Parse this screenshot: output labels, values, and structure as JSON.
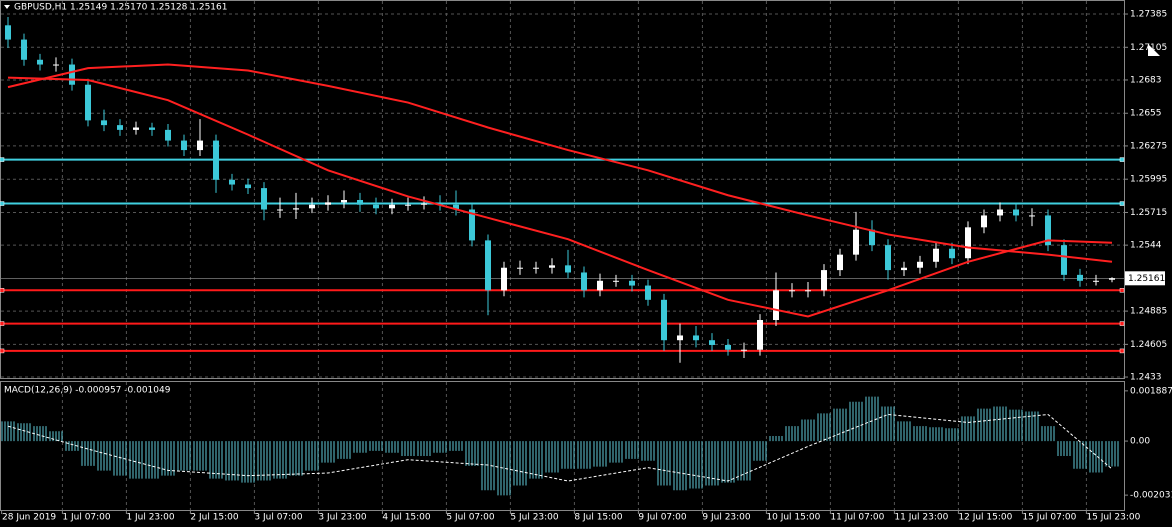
{
  "chart_data": [
    {
      "type": "candlestick",
      "title": "GBPUSD,H1  1.25149 1.25170 1.25128 1.25161",
      "up_color": "#ffffff",
      "down_color": "#3cc8d8",
      "open": [
        1.2729,
        1.2717,
        1.27,
        1.2696,
        1.2696,
        1.2679,
        1.2649,
        1.2645,
        1.2641,
        1.2643,
        1.2641,
        1.2632,
        1.2624,
        1.2632,
        1.2599,
        1.2595,
        1.2592,
        1.2574,
        1.2574,
        1.2575,
        1.2578,
        1.258,
        1.2582,
        1.2578,
        1.2575,
        1.2578,
        1.2578,
        1.2579,
        1.2578,
        1.2574,
        1.2548,
        1.2506,
        1.2525,
        1.2525,
        1.2525,
        1.2527,
        1.2521,
        1.2506,
        1.2514,
        1.2514,
        1.251,
        1.2498,
        1.2464,
        1.2468,
        1.2464,
        1.246,
        1.2456,
        1.2456,
        1.2481,
        1.2506,
        1.2506,
        1.2506,
        1.2523,
        1.2536,
        1.2557,
        1.2544,
        1.2523,
        1.2525,
        1.253,
        1.2541,
        1.2533,
        1.2559,
        1.2569,
        1.2574,
        1.2569,
        1.2569,
        1.2544,
        1.2519,
        1.2514,
        1.25149
      ],
      "high": [
        1.2736,
        1.2722,
        1.2705,
        1.2702,
        1.2701,
        1.2684,
        1.2658,
        1.265,
        1.2648,
        1.2647,
        1.2646,
        1.2637,
        1.265,
        1.2637,
        1.2604,
        1.26,
        1.2597,
        1.2584,
        1.2588,
        1.2584,
        1.2586,
        1.259,
        1.2588,
        1.2584,
        1.2583,
        1.2584,
        1.2585,
        1.2586,
        1.259,
        1.2579,
        1.2553,
        1.253,
        1.2531,
        1.253,
        1.2533,
        1.254,
        1.2526,
        1.252,
        1.2519,
        1.2519,
        1.2515,
        1.2503,
        1.2478,
        1.2476,
        1.247,
        1.2465,
        1.2462,
        1.2486,
        1.2521,
        1.2512,
        1.2513,
        1.2528,
        1.2541,
        1.2572,
        1.2565,
        1.2549,
        1.253,
        1.2535,
        1.2546,
        1.2546,
        1.2564,
        1.2574,
        1.258,
        1.2579,
        1.2575,
        1.2574,
        1.2549,
        1.2524,
        1.2519,
        1.2517
      ],
      "low": [
        1.271,
        1.2695,
        1.2691,
        1.269,
        1.2674,
        1.2644,
        1.264,
        1.2636,
        1.2637,
        1.2636,
        1.2627,
        1.2619,
        1.2619,
        1.2588,
        1.259,
        1.2587,
        1.2565,
        1.2567,
        1.2566,
        1.2571,
        1.2573,
        1.2575,
        1.2572,
        1.257,
        1.257,
        1.2573,
        1.2574,
        1.2573,
        1.2569,
        1.2543,
        1.2485,
        1.2501,
        1.2519,
        1.252,
        1.252,
        1.2516,
        1.25,
        1.2501,
        1.2509,
        1.2505,
        1.2493,
        1.2455,
        1.2445,
        1.2458,
        1.2455,
        1.2451,
        1.2449,
        1.2451,
        1.2476,
        1.25,
        1.25,
        1.2501,
        1.2518,
        1.2531,
        1.2539,
        1.2515,
        1.2518,
        1.252,
        1.2525,
        1.2528,
        1.2528,
        1.2554,
        1.2564,
        1.2564,
        1.256,
        1.2539,
        1.2514,
        1.2509,
        1.251,
        1.25128
      ],
      "close": [
        1.2717,
        1.27,
        1.2696,
        1.2696,
        1.2679,
        1.2649,
        1.2645,
        1.2641,
        1.2643,
        1.2641,
        1.2632,
        1.2624,
        1.2632,
        1.2599,
        1.2595,
        1.2592,
        1.2574,
        1.2574,
        1.2575,
        1.2578,
        1.258,
        1.2582,
        1.2578,
        1.2575,
        1.2578,
        1.2578,
        1.2579,
        1.2578,
        1.2574,
        1.2548,
        1.2506,
        1.2525,
        1.2525,
        1.2525,
        1.2527,
        1.2521,
        1.2506,
        1.2514,
        1.2514,
        1.251,
        1.2498,
        1.2464,
        1.2468,
        1.2464,
        1.246,
        1.2456,
        1.2456,
        1.2481,
        1.2506,
        1.2506,
        1.2506,
        1.2523,
        1.2536,
        1.2557,
        1.2544,
        1.2523,
        1.2525,
        1.253,
        1.2541,
        1.2533,
        1.2559,
        1.2569,
        1.2574,
        1.2569,
        1.2569,
        1.2544,
        1.2519,
        1.2514,
        1.2514,
        1.25161
      ],
      "lines": [
        {
          "color": "#ff2020",
          "x": [
            0,
            5,
            10,
            15,
            20,
            25,
            30,
            35,
            40,
            45,
            50,
            55,
            60,
            65,
            69
          ],
          "values": [
            1.2677,
            1.2693,
            1.2696,
            1.2691,
            1.2678,
            1.2664,
            1.2643,
            1.2624,
            1.2607,
            1.2586,
            1.2569,
            1.2553,
            1.2542,
            1.2536,
            1.253
          ]
        },
        {
          "color": "#ff2020",
          "x": [
            0,
            5,
            10,
            15,
            20,
            25,
            30,
            35,
            40,
            45,
            50,
            55,
            60,
            65,
            69
          ],
          "values": [
            1.2685,
            1.2683,
            1.2666,
            1.2637,
            1.2607,
            1.2585,
            1.2567,
            1.2549,
            1.2523,
            1.2498,
            1.2484,
            1.2506,
            1.253,
            1.2548,
            1.2546
          ]
        }
      ],
      "levels": [
        {
          "value": 1.2616,
          "color": "#40d0e0"
        },
        {
          "value": 1.2579,
          "color": "#40d0e0"
        },
        {
          "value": 1.2506,
          "color": "#ff1a1a"
        },
        {
          "value": 1.2478,
          "color": "#ff1a1a"
        },
        {
          "value": 1.2455,
          "color": "#ff1a1a"
        }
      ],
      "bid": 1.25161,
      "ylim": [
        1.24322,
        1.27503
      ],
      "yticks": [
        1.27385,
        1.27105,
        1.2683,
        1.2655,
        1.26275,
        1.25995,
        1.25715,
        1.2544,
        1.24885,
        1.24605,
        1.2433
      ],
      "xticks": [
        {
          "value": -0.4,
          "label": "28 Jun 2019"
        },
        {
          "value": 3.4,
          "label": "1 Jul 07:00"
        },
        {
          "value": 7.4,
          "label": "1 Jul 23:00"
        },
        {
          "value": 11.4,
          "label": "2 Jul 15:00"
        },
        {
          "value": 15.4,
          "label": "3 Jul 07:00"
        },
        {
          "value": 19.4,
          "label": "3 Jul 23:00"
        },
        {
          "value": 23.4,
          "label": "4 Jul 15:00"
        },
        {
          "value": 27.4,
          "label": "5 Jul 07:00"
        },
        {
          "value": 31.4,
          "label": "5 Jul 23:00"
        },
        {
          "value": 35.4,
          "label": "8 Jul 15:00"
        },
        {
          "value": 39.4,
          "label": "9 Jul 07:00"
        },
        {
          "value": 43.4,
          "label": "9 Jul 23:00"
        },
        {
          "value": 47.4,
          "label": "10 Jul 15:00"
        },
        {
          "value": 51.4,
          "label": "11 Jul 07:00"
        },
        {
          "value": 55.4,
          "label": "11 Jul 23:00"
        },
        {
          "value": 59.4,
          "label": "12 Jul 15:00"
        },
        {
          "value": 63.4,
          "label": "15 Jul 07:00"
        },
        {
          "value": 67.4,
          "label": "15 Jul 23:00"
        }
      ],
      "grid": true
    },
    {
      "type": "macd",
      "title": "MACD(12,26,9) -0.000957 -0.001049",
      "color": "#5fc9d6",
      "signal_color": "#ffffff",
      "values": [
        0.00074,
        0.00067,
        0.00056,
        0.00037,
        -0.00037,
        -0.00093,
        -0.00111,
        -0.0013,
        -0.00141,
        -0.00141,
        -0.0013,
        -0.00111,
        -0.00111,
        -0.00141,
        -0.00148,
        -0.00156,
        -0.00148,
        -0.00141,
        -0.0013,
        -0.00111,
        -0.00081,
        -0.00067,
        -0.00044,
        -0.00037,
        -0.00044,
        -0.00056,
        -0.00056,
        -0.00044,
        -0.00037,
        -0.00093,
        -0.00185,
        -0.00204,
        -0.00167,
        -0.00141,
        -0.00118,
        -0.00104,
        -0.00104,
        -0.00096,
        -0.00081,
        -0.00067,
        -0.00074,
        -0.00167,
        -0.00185,
        -0.00178,
        -0.00167,
        -0.00156,
        -0.00148,
        -0.00074,
        0.00019,
        0.00056,
        0.00081,
        0.00104,
        0.00122,
        0.00148,
        0.00167,
        0.0013,
        0.00074,
        0.00056,
        0.00052,
        0.00048,
        0.00093,
        0.00122,
        0.0013,
        0.00118,
        0.00111,
        0.00056,
        -0.00056,
        -0.00104,
        -0.00118,
        -0.000957
      ],
      "signal": {
        "x": [
          0,
          5,
          10,
          15,
          20,
          25,
          30,
          35,
          40,
          45,
          50,
          55,
          60,
          65,
          69
        ],
        "values": [
          0.00056,
          -0.0003,
          -0.0011,
          -0.0013,
          -0.0012,
          -0.0007,
          -0.0009,
          -0.0015,
          -0.001,
          -0.0015,
          -0.0002,
          0.001,
          0.0007,
          0.001,
          -0.001049
        ]
      },
      "ylim": [
        -0.00259,
        0.00222
      ],
      "yticks": [
        0.001887,
        {
          "value": 0,
          "label": "0.00"
        },
        -0.002031
      ]
    }
  ]
}
